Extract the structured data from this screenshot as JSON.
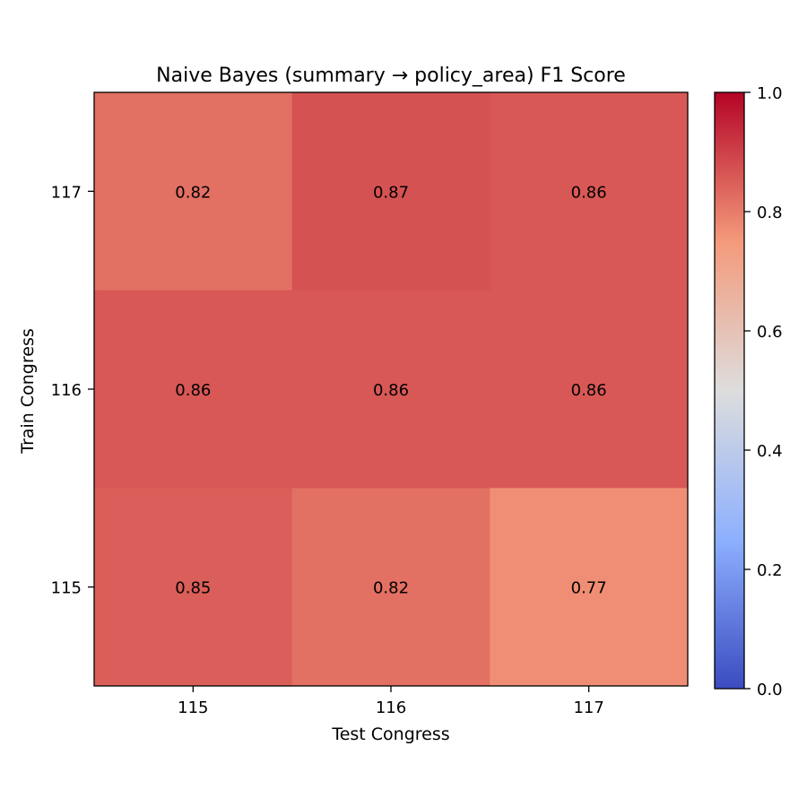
{
  "chart_data": {
    "type": "heatmap",
    "title": "Naive Bayes (summary → policy_area) F1 Score",
    "xlabel": "Test Congress",
    "ylabel": "Train Congress",
    "x_categories": [
      "115",
      "116",
      "117"
    ],
    "y_categories": [
      "117",
      "116",
      "115"
    ],
    "values": [
      [
        0.82,
        0.87,
        0.86
      ],
      [
        0.86,
        0.86,
        0.86
      ],
      [
        0.85,
        0.82,
        0.77
      ]
    ],
    "value_labels": [
      [
        "0.82",
        "0.87",
        "0.86"
      ],
      [
        "0.86",
        "0.86",
        "0.86"
      ],
      [
        "0.85",
        "0.82",
        "0.77"
      ]
    ],
    "colormap": "coolwarm",
    "colorbar": {
      "range": [
        0.0,
        1.0
      ],
      "ticks": [
        0.0,
        0.2,
        0.4,
        0.6,
        0.8,
        1.0
      ],
      "tick_labels": [
        "0.0",
        "0.2",
        "0.4",
        "0.6",
        "0.8",
        "1.0"
      ],
      "colors": {
        "0.0": "#3b4cc0",
        "0.25": "#8db0fe",
        "0.5": "#dddddd",
        "0.75": "#f49a7b",
        "1.0": "#b40426"
      }
    },
    "grid": false
  }
}
